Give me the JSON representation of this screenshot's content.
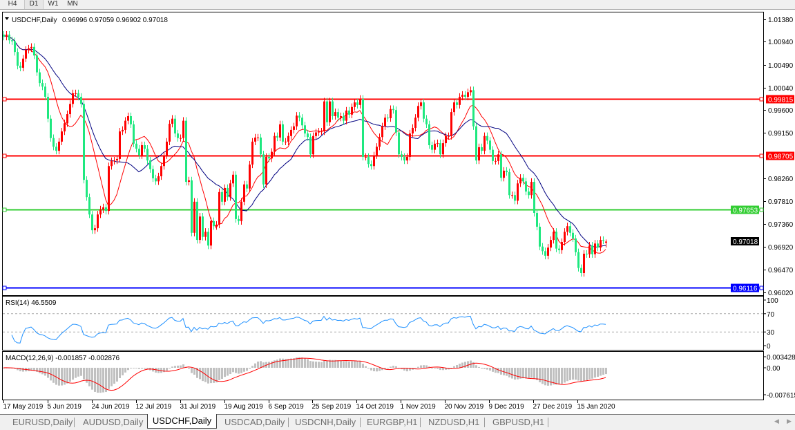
{
  "timeframes": [
    {
      "label": "H4",
      "active": false
    },
    {
      "label": "D1",
      "active": true
    },
    {
      "label": "W1",
      "active": false
    },
    {
      "label": "MN",
      "active": false
    }
  ],
  "chart_header": {
    "symbol": "USDCHF,Daily",
    "ohlc": "0.96996 0.97059 0.96902 0.97018"
  },
  "tabs": [
    {
      "label": "EURUSD,Daily",
      "active": false
    },
    {
      "label": "AUDUSD,Daily",
      "active": false
    },
    {
      "label": "USDCHF,Daily",
      "active": true
    },
    {
      "label": "USDCAD,Daily",
      "active": false
    },
    {
      "label": "USDCNH,Daily",
      "active": false
    },
    {
      "label": "EURGBP,H1",
      "active": false
    },
    {
      "label": "NZDUSD,H1",
      "active": false
    },
    {
      "label": "GBPUSD,H1",
      "active": false
    }
  ],
  "chart_data": {
    "type": "candlestick",
    "symbol": "USDCHF",
    "timeframe": "Daily",
    "colors": {
      "up": "#ff0000",
      "down": "#1ee87f",
      "ma_fast": "#ff0000",
      "ma_slow": "#000080",
      "rsi": "#1e90ff",
      "macd_hist": "#c0c0c0",
      "macd_signal": "#ff0000"
    },
    "last_bar": {
      "open": 0.96996,
      "high": 0.97059,
      "low": 0.96902,
      "close": 0.97018
    },
    "closes": [
      1.0104,
      1.0108,
      1.0097,
      1.0095,
      1.0074,
      1.0047,
      1.0043,
      1.0061,
      1.0078,
      1.0081,
      1.0084,
      1.0067,
      1.0034,
      1.0013,
      1.0006,
      0.9986,
      0.9943,
      0.9905,
      0.9888,
      0.988,
      0.9898,
      0.9918,
      0.9934,
      0.9952,
      0.9972,
      0.9993,
      0.9993,
      0.9986,
      0.9972,
      0.9823,
      0.9789,
      0.9755,
      0.9724,
      0.9728,
      0.9755,
      0.9765,
      0.9769,
      0.9762,
      0.985,
      0.986,
      0.9861,
      0.9864,
      0.9918,
      0.9921,
      0.9939,
      0.9948,
      0.9932,
      0.9894,
      0.9884,
      0.9871,
      0.9891,
      0.9884,
      0.9861,
      0.9844,
      0.9826,
      0.982,
      0.983,
      0.985,
      0.9871,
      0.9898,
      0.9933,
      0.9943,
      0.9914,
      0.9905,
      0.9905,
      0.9939,
      0.9819,
      0.9822,
      0.9719,
      0.978,
      0.9705,
      0.9751,
      0.9711,
      0.9721,
      0.9694,
      0.9742,
      0.9732,
      0.9735,
      0.9799,
      0.978,
      0.9807,
      0.9789,
      0.9816,
      0.9833,
      0.9746,
      0.9742,
      0.978,
      0.9814,
      0.9806,
      0.9853,
      0.9898,
      0.9906,
      0.9906,
      0.9873,
      0.9814,
      0.9868,
      0.9865,
      0.9878,
      0.9909,
      0.9906,
      0.9932,
      0.9898,
      0.9898,
      0.9909,
      0.9921,
      0.9928,
      0.9949,
      0.9945,
      0.993,
      0.9914,
      0.9907,
      0.9873,
      0.9909,
      0.9916,
      0.9918,
      0.9918,
      0.9977,
      0.9936,
      0.9977,
      0.9948,
      0.9956,
      0.9945,
      0.9948,
      0.9939,
      0.9959,
      0.9951,
      0.9966,
      0.9975,
      0.997,
      0.9982,
      0.9868,
      0.9868,
      0.9854,
      0.985,
      0.9871,
      0.9888,
      0.9907,
      0.9928,
      0.9945,
      0.9944,
      0.9962,
      0.996,
      0.9916,
      0.9873,
      0.9868,
      0.9861,
      0.9868,
      0.9914,
      0.9925,
      0.9945,
      0.9968,
      0.9975,
      0.9943,
      0.9932,
      0.9891,
      0.9882,
      0.9894,
      0.9895,
      0.9873,
      0.9895,
      0.9909,
      0.9909,
      0.9956,
      0.9975,
      0.997,
      0.9986,
      0.999,
      0.9986,
      0.9995,
      0.9999,
      0.9928,
      0.9861,
      0.9887,
      0.988,
      0.9909,
      0.99,
      0.9882,
      0.986,
      0.986,
      0.9873,
      0.9827,
      0.9841,
      0.9838,
      0.9793,
      0.9793,
      0.9782,
      0.9816,
      0.9827,
      0.982,
      0.98,
      0.9793,
      0.9819,
      0.9758,
      0.9731,
      0.9692,
      0.9683,
      0.9674,
      0.969,
      0.9705,
      0.9721,
      0.9688,
      0.9685,
      0.9701,
      0.9721,
      0.9732,
      0.9719,
      0.9708,
      0.9681,
      0.965,
      0.964,
      0.9678,
      0.9677,
      0.9694,
      0.9677,
      0.9698,
      0.969,
      0.9705,
      0.9704,
      0.97018
    ],
    "price_axis": {
      "range": [
        0.9602,
        1.0138
      ],
      "tick_labels": [
        "1.01380",
        "1.00940",
        "1.00490",
        "1.00040",
        "0.99600",
        "0.99150",
        "0.98260",
        "0.97810",
        "0.97360",
        "0.96920",
        "0.96470",
        "0.96020"
      ]
    },
    "levels": [
      {
        "label": "0.99815",
        "color": "#ff0000"
      },
      {
        "label": "0.98705",
        "color": "#ff0000"
      },
      {
        "label": "0.97653",
        "color": "#32cd32"
      },
      {
        "label": "0.96116",
        "color": "#0000ff"
      }
    ],
    "current_price_label": "0.97018",
    "date_labels": [
      "17 May 2019",
      "5 Jun 2019",
      "24 Jun 2019",
      "12 Jul 2019",
      "31 Jul 2019",
      "19 Aug 2019",
      "6 Sep 2019",
      "25 Sep 2019",
      "14 Oct 2019",
      "1 Nov 2019",
      "20 Nov 2019",
      "9 Dec 2019",
      "27 Dec 2019",
      "15 Jan 2020"
    ],
    "rsi": {
      "title": "RSI(14) 46.5509",
      "period": 14,
      "range": [
        0,
        100
      ],
      "levels": [
        70,
        30
      ],
      "tick_labels": [
        "100",
        "70",
        "30",
        "0"
      ]
    },
    "macd": {
      "title": "MACD(12,26,9) -0.001857 -0.002876",
      "fast": 12,
      "slow": 26,
      "signal": 9,
      "range": [
        -0.007615,
        0.003428
      ],
      "tick_labels": [
        "0.003428",
        "0.00",
        "-0.007615"
      ]
    }
  }
}
